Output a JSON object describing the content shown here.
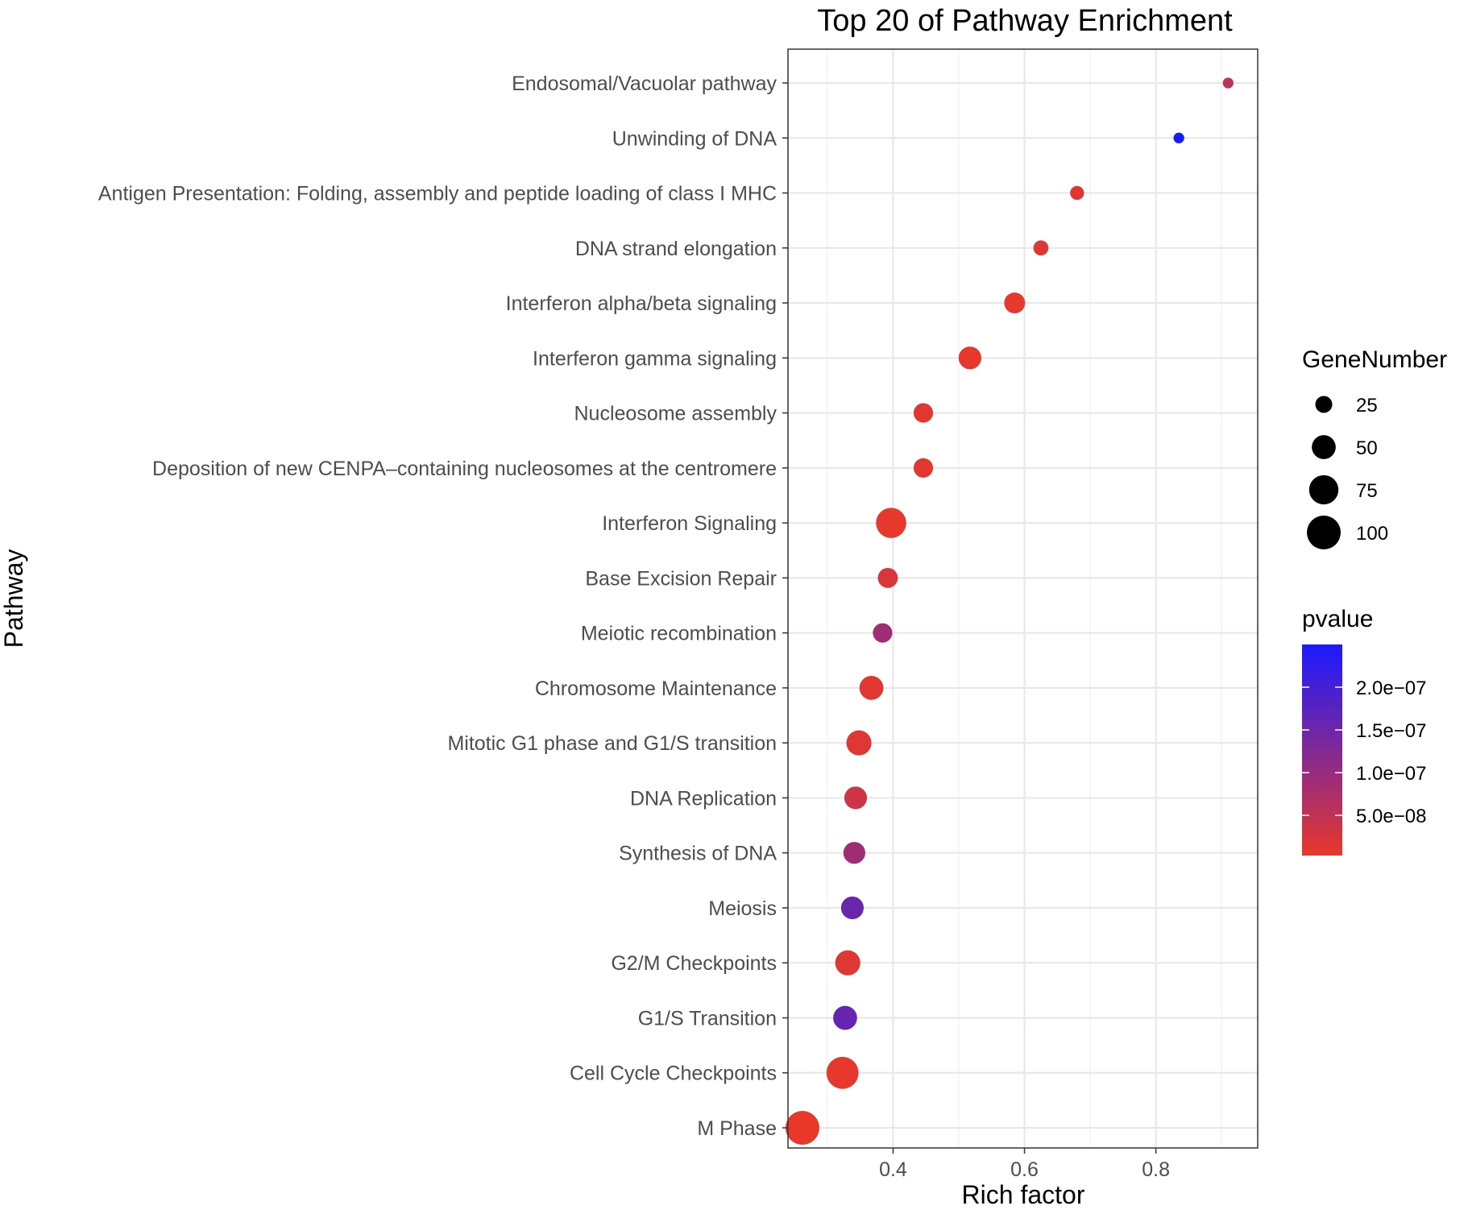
{
  "chart_data": {
    "type": "scatter",
    "title": "Top 20 of Pathway Enrichment",
    "xlabel": "Rich factor",
    "ylabel": "Pathway",
    "xlim": [
      0.24,
      0.955
    ],
    "x_ticks": [
      0.4,
      0.6,
      0.8
    ],
    "x_tick_labels": [
      "0.4",
      "0.6",
      "0.8"
    ],
    "grid": true,
    "points": [
      {
        "pathway": "Endosomal/Vacuolar pathway",
        "rich_factor": 0.91,
        "gene_number": 10,
        "pvalue": 5.5e-08
      },
      {
        "pathway": "Unwinding of DNA",
        "rich_factor": 0.835,
        "gene_number": 10,
        "pvalue": 2.5e-07
      },
      {
        "pathway": "Antigen Presentation: Folding, assembly and peptide loading of class I MHC",
        "rich_factor": 0.68,
        "gene_number": 17,
        "pvalue": 1e-08
      },
      {
        "pathway": "DNA strand elongation",
        "rich_factor": 0.625,
        "gene_number": 20,
        "pvalue": 1.5e-08
      },
      {
        "pathway": "Interferon alpha/beta signaling",
        "rich_factor": 0.585,
        "gene_number": 38,
        "pvalue": 5e-09
      },
      {
        "pathway": "Interferon gamma signaling",
        "rich_factor": 0.517,
        "gene_number": 45,
        "pvalue": 5e-09
      },
      {
        "pathway": "Nucleosome assembly",
        "rich_factor": 0.446,
        "gene_number": 33,
        "pvalue": 1e-08
      },
      {
        "pathway": "Deposition of new CENPA–containing nucleosomes at the centromere",
        "rich_factor": 0.446,
        "gene_number": 33,
        "pvalue": 1e-08
      },
      {
        "pathway": "Interferon Signaling",
        "rich_factor": 0.397,
        "gene_number": 80,
        "pvalue": 5e-09
      },
      {
        "pathway": "Base Excision Repair",
        "rich_factor": 0.392,
        "gene_number": 35,
        "pvalue": 2e-08
      },
      {
        "pathway": "Meiotic recombination",
        "rich_factor": 0.384,
        "gene_number": 33,
        "pvalue": 9e-08
      },
      {
        "pathway": "Chromosome Maintenance",
        "rich_factor": 0.367,
        "gene_number": 50,
        "pvalue": 1e-08
      },
      {
        "pathway": "Mitotic G1 phase and G1/S transition",
        "rich_factor": 0.348,
        "gene_number": 55,
        "pvalue": 1.5e-08
      },
      {
        "pathway": "DNA Replication",
        "rich_factor": 0.343,
        "gene_number": 45,
        "pvalue": 3.5e-08
      },
      {
        "pathway": "Synthesis of DNA",
        "rich_factor": 0.341,
        "gene_number": 42,
        "pvalue": 9e-08
      },
      {
        "pathway": "Meiosis",
        "rich_factor": 0.338,
        "gene_number": 45,
        "pvalue": 1.55e-07
      },
      {
        "pathway": "G2/M Checkpoints",
        "rich_factor": 0.331,
        "gene_number": 55,
        "pvalue": 1.5e-08
      },
      {
        "pathway": "G1/S Transition",
        "rich_factor": 0.327,
        "gene_number": 50,
        "pvalue": 1.6e-07
      },
      {
        "pathway": "Cell Cycle Checkpoints",
        "rich_factor": 0.323,
        "gene_number": 90,
        "pvalue": 5e-09
      },
      {
        "pathway": "M Phase",
        "rich_factor": 0.262,
        "gene_number": 100,
        "pvalue": 3e-09
      }
    ],
    "legend_size": {
      "title": "GeneNumber",
      "values": [
        25,
        50,
        75,
        100
      ],
      "labels": [
        "25",
        "50",
        "75",
        "100"
      ]
    },
    "legend_color": {
      "title": "pvalue",
      "range": [
        3e-09,
        2.5e-07
      ],
      "ticks": [
        5e-08,
        1e-07,
        1.5e-07,
        2e-07
      ],
      "tick_labels": [
        "5.0e−08",
        "1.0e−07",
        "1.5e−07",
        "2.0e−07"
      ],
      "low_color": "#e8382a",
      "high_color": "#1a1aff"
    },
    "legend_position": "right"
  }
}
